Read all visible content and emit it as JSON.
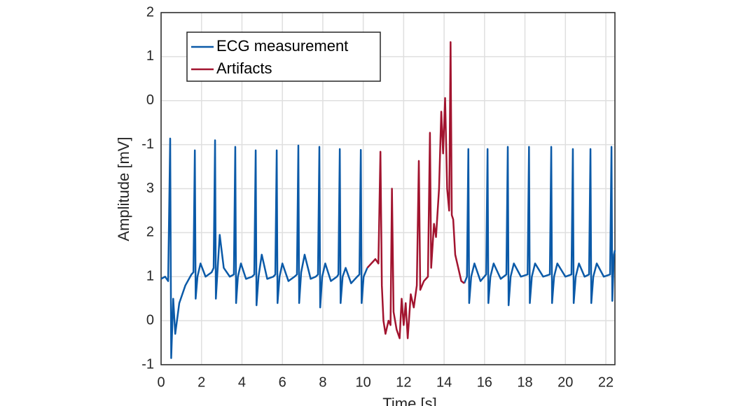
{
  "chart_data": {
    "type": "line",
    "xlabel": "Time [s]",
    "ylabel": "Amplitude [mV]",
    "xlim": [
      0,
      22.45
    ],
    "xticks": [
      0,
      2,
      4,
      6,
      8,
      10,
      12,
      14,
      16,
      18,
      20,
      22
    ],
    "ylim": [
      -1,
      7
    ],
    "yticks": [
      -1,
      0,
      1,
      2,
      3,
      {
        "value": 4,
        "label": "-1"
      },
      {
        "value": 5,
        "label": "0"
      },
      {
        "value": 6,
        "label": "1"
      },
      {
        "value": 7,
        "label": "2"
      }
    ],
    "grid": true,
    "legend": "upper left",
    "x": [
      0,
      0.2,
      0.35,
      0.45,
      0.5,
      0.6,
      0.7,
      0.9,
      1.2,
      1.5,
      1.6,
      1.67,
      1.71,
      1.8,
      1.95,
      2.2,
      2.5,
      2.6,
      2.67,
      2.71,
      2.8,
      2.9,
      3.1,
      3.4,
      3.6,
      3.67,
      3.71,
      3.8,
      3.95,
      4.2,
      4.5,
      4.61,
      4.68,
      4.72,
      4.82,
      4.98,
      5.25,
      5.55,
      5.65,
      5.72,
      5.76,
      5.86,
      6.0,
      6.3,
      6.6,
      6.72,
      6.79,
      6.83,
      6.93,
      7.1,
      7.4,
      7.65,
      7.76,
      7.83,
      7.87,
      7.97,
      8.12,
      8.4,
      8.7,
      8.77,
      8.84,
      8.88,
      8.98,
      9.13,
      9.4,
      9.7,
      9.81,
      9.88,
      9.92,
      10.02,
      10.2,
      10.4,
      10.6,
      10.75,
      10.85,
      10.92,
      11.0,
      11.1,
      11.25,
      11.35,
      11.42,
      11.5,
      11.65,
      11.8,
      11.9,
      12.0,
      12.1,
      12.2,
      12.35,
      12.5,
      12.65,
      12.75,
      12.82,
      13.0,
      13.2,
      13.3,
      13.36,
      13.5,
      13.6,
      13.75,
      13.86,
      13.95,
      14.05,
      14.15,
      14.25,
      14.32,
      14.38,
      14.45,
      14.55,
      14.7,
      14.85,
      15.0,
      15.13,
      15.2,
      15.24,
      15.34,
      15.5,
      15.8,
      16.08,
      16.15,
      16.19,
      16.29,
      16.45,
      16.8,
      17.08,
      17.15,
      17.19,
      17.29,
      17.45,
      17.8,
      18.13,
      18.2,
      18.24,
      18.34,
      18.5,
      18.9,
      19.23,
      19.3,
      19.34,
      19.44,
      19.6,
      20.0,
      20.3,
      20.37,
      20.41,
      20.51,
      20.67,
      20.95,
      21.17,
      21.24,
      21.28,
      21.38,
      21.55,
      21.9,
      22.21,
      22.28,
      22.32,
      22.4,
      22.45
    ],
    "series": [
      {
        "name": "ECG measurement",
        "color": "#0b5aa8",
        "values": [
          0.95,
          1.0,
          0.9,
          4.14,
          -0.85,
          0.5,
          -0.3,
          0.4,
          0.8,
          1.05,
          1.1,
          3.87,
          0.5,
          1.0,
          1.3,
          1.0,
          1.1,
          1.2,
          4.1,
          0.5,
          1.2,
          1.95,
          1.2,
          1.0,
          1.05,
          3.95,
          0.4,
          1.0,
          1.3,
          0.95,
          1.0,
          1.05,
          3.87,
          0.35,
          1.0,
          1.5,
          0.95,
          1.0,
          1.05,
          3.87,
          0.4,
          1.0,
          1.3,
          0.9,
          1.0,
          1.05,
          3.98,
          0.4,
          1.1,
          1.5,
          0.95,
          1.0,
          1.05,
          3.95,
          0.3,
          1.0,
          1.3,
          0.9,
          1.0,
          1.05,
          3.9,
          0.4,
          1.0,
          1.2,
          0.85,
          1.0,
          1.05,
          3.88,
          0.4,
          1.0,
          1.2,
          null,
          null,
          null,
          null,
          null,
          null,
          null,
          null,
          null,
          null,
          null,
          null,
          null,
          null,
          null,
          null,
          null,
          null,
          null,
          null,
          null,
          null,
          null,
          null,
          null,
          null,
          null,
          null,
          null,
          null,
          null,
          null,
          null,
          null,
          null,
          null,
          null,
          null,
          null,
          null,
          0.85,
          1.0,
          3.9,
          0.4,
          1.0,
          1.3,
          0.9,
          1.05,
          3.9,
          0.4,
          1.0,
          1.3,
          0.95,
          1.05,
          3.95,
          0.35,
          1.0,
          1.3,
          1.0,
          1.05,
          3.95,
          0.4,
          1.0,
          1.3,
          1.0,
          1.05,
          3.95,
          0.4,
          1.0,
          1.3,
          1.0,
          1.05,
          3.9,
          0.4,
          1.0,
          1.3,
          1.0,
          1.05,
          3.9,
          0.4,
          1.0,
          1.3,
          1.0,
          1.05,
          3.95,
          0.45,
          1.5,
          1.6
        ]
      },
      {
        "name": "Artifacts",
        "color": "#a2142f",
        "values": [
          null,
          null,
          null,
          null,
          null,
          null,
          null,
          null,
          null,
          null,
          null,
          null,
          null,
          null,
          null,
          null,
          null,
          null,
          null,
          null,
          null,
          null,
          null,
          null,
          null,
          null,
          null,
          null,
          null,
          null,
          null,
          null,
          null,
          null,
          null,
          null,
          null,
          null,
          null,
          null,
          null,
          null,
          null,
          null,
          null,
          null,
          null,
          null,
          null,
          null,
          null,
          null,
          null,
          null,
          null,
          null,
          null,
          null,
          null,
          null,
          null,
          null,
          null,
          null,
          null,
          null,
          null,
          null,
          null,
          null,
          1.2,
          1.3,
          1.4,
          1.3,
          3.84,
          0.8,
          0.0,
          -0.3,
          0.0,
          -0.1,
          3.0,
          0.2,
          -0.2,
          -0.4,
          0.5,
          -0.1,
          0.4,
          -0.4,
          0.6,
          0.3,
          0.8,
          3.63,
          0.7,
          0.9,
          1.0,
          4.27,
          1.2,
          2.2,
          1.9,
          3.0,
          4.75,
          3.8,
          5.06,
          3.0,
          2.5,
          6.33,
          2.4,
          2.3,
          1.5,
          1.2,
          0.9,
          0.85,
          null,
          null,
          null,
          null,
          null,
          null,
          null,
          null,
          null,
          null,
          null,
          null,
          null,
          null,
          null,
          null,
          null,
          null,
          null,
          null,
          null,
          null,
          null,
          null,
          null,
          null,
          null,
          null,
          null,
          null,
          null,
          null,
          null,
          null,
          null,
          null,
          null,
          null,
          null,
          null,
          null,
          null,
          null,
          null,
          null,
          null,
          null
        ]
      }
    ]
  }
}
